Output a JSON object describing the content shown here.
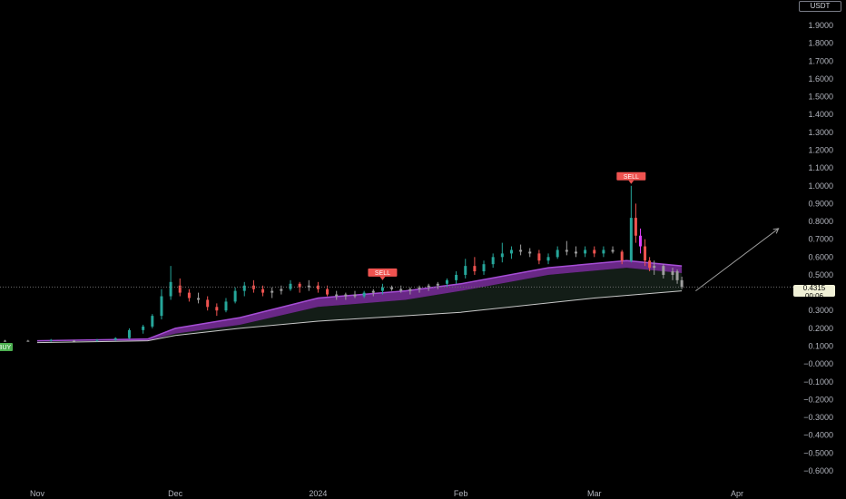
{
  "currency": "USDT",
  "last_price": {
    "value": "0.4315",
    "countdown": "00:06"
  },
  "colors": {
    "bull": "#26a69a",
    "bear": "#ef5350",
    "neutral": "#9e9e9e",
    "band": "#7b2f9e",
    "band_fill": "#15201a",
    "baseline": "#c8c8c8"
  },
  "chart_data": {
    "type": "candlestick",
    "y_axis": {
      "ticks": [
        "1.9000",
        "1.8000",
        "1.7000",
        "1.6000",
        "1.5000",
        "1.4000",
        "1.3000",
        "1.2000",
        "1.1000",
        "1.0000",
        "0.9000",
        "0.8000",
        "0.7000",
        "0.6000",
        "0.5000",
        "0.4000",
        "0.3000",
        "0.2000",
        "0.1000",
        "−0.0000",
        "−0.1000",
        "−0.2000",
        "−0.3000",
        "−0.4000",
        "−0.5000",
        "−0.6000"
      ],
      "ylim": [
        -0.6,
        1.9
      ]
    },
    "x_axis": {
      "ticks": [
        "Nov",
        "Dec",
        "2024",
        "Feb",
        "Mar",
        "Apr"
      ],
      "dates": [
        "2023-11-01",
        "2023-12-01",
        "2024-01-01",
        "2024-02-01",
        "2024-03-01",
        "2024-04-01"
      ]
    },
    "signals": [
      {
        "label": "SELL",
        "date": "2024-01-15",
        "price": 0.46
      },
      {
        "label": "SELL",
        "date": "2024-03-09",
        "price": 1.0
      },
      {
        "label": "BUY",
        "date": "2023-10-20",
        "price": 0.13
      }
    ],
    "band": {
      "upper": [
        [
          "2023-11-01",
          0.13
        ],
        [
          "2023-11-25",
          0.14
        ],
        [
          "2023-12-01",
          0.2
        ],
        [
          "2023-12-15",
          0.26
        ],
        [
          "2024-01-01",
          0.37
        ],
        [
          "2024-01-20",
          0.41
        ],
        [
          "2024-02-01",
          0.45
        ],
        [
          "2024-02-20",
          0.54
        ],
        [
          "2024-03-08",
          0.58
        ],
        [
          "2024-03-20",
          0.55
        ]
      ],
      "lower": [
        [
          "2023-11-01",
          0.13
        ],
        [
          "2023-11-25",
          0.13
        ],
        [
          "2023-12-01",
          0.17
        ],
        [
          "2023-12-15",
          0.22
        ],
        [
          "2024-01-01",
          0.32
        ],
        [
          "2024-01-20",
          0.36
        ],
        [
          "2024-02-01",
          0.41
        ],
        [
          "2024-02-20",
          0.5
        ],
        [
          "2024-03-08",
          0.54
        ],
        [
          "2024-03-20",
          0.51
        ]
      ]
    },
    "baseline": [
      [
        "2023-11-01",
        0.12
      ],
      [
        "2023-11-25",
        0.13
      ],
      [
        "2023-12-01",
        0.16
      ],
      [
        "2023-12-15",
        0.2
      ],
      [
        "2024-01-01",
        0.24
      ],
      [
        "2024-02-01",
        0.29
      ],
      [
        "2024-03-01",
        0.37
      ],
      [
        "2024-03-20",
        0.41
      ]
    ],
    "projection": [
      [
        "2024-03-23",
        0.41
      ],
      [
        "2024-04-10",
        0.76
      ]
    ],
    "candles": [
      [
        "2023-10-20",
        0.13,
        0.135,
        0.125,
        0.13
      ],
      [
        "2023-10-25",
        0.13,
        0.135,
        0.125,
        0.13
      ],
      [
        "2023-10-30",
        0.13,
        0.135,
        0.125,
        0.13
      ],
      [
        "2023-11-04",
        0.13,
        0.14,
        0.125,
        0.135
      ],
      [
        "2023-11-09",
        0.13,
        0.135,
        0.125,
        0.13
      ],
      [
        "2023-11-14",
        0.13,
        0.14,
        0.125,
        0.135
      ],
      [
        "2023-11-18",
        0.135,
        0.15,
        0.13,
        0.145
      ],
      [
        "2023-11-21",
        0.145,
        0.2,
        0.14,
        0.19
      ],
      [
        "2023-11-24",
        0.19,
        0.22,
        0.17,
        0.21
      ],
      [
        "2023-11-26",
        0.21,
        0.28,
        0.2,
        0.27
      ],
      [
        "2023-11-28",
        0.27,
        0.42,
        0.25,
        0.38
      ],
      [
        "2023-11-30",
        0.38,
        0.55,
        0.36,
        0.46
      ],
      [
        "2023-12-02",
        0.44,
        0.48,
        0.38,
        0.4
      ],
      [
        "2023-12-04",
        0.4,
        0.42,
        0.35,
        0.37
      ],
      [
        "2023-12-06",
        0.37,
        0.4,
        0.34,
        0.36
      ],
      [
        "2023-12-08",
        0.36,
        0.38,
        0.3,
        0.32
      ],
      [
        "2023-12-10",
        0.32,
        0.34,
        0.27,
        0.3
      ],
      [
        "2023-12-12",
        0.3,
        0.37,
        0.29,
        0.35
      ],
      [
        "2023-12-14",
        0.35,
        0.43,
        0.34,
        0.41
      ],
      [
        "2023-12-16",
        0.41,
        0.46,
        0.38,
        0.44
      ],
      [
        "2023-12-18",
        0.44,
        0.47,
        0.4,
        0.42
      ],
      [
        "2023-12-20",
        0.42,
        0.44,
        0.38,
        0.4
      ],
      [
        "2023-12-22",
        0.4,
        0.43,
        0.37,
        0.41
      ],
      [
        "2023-12-24",
        0.41,
        0.44,
        0.39,
        0.42
      ],
      [
        "2023-12-26",
        0.42,
        0.47,
        0.41,
        0.45
      ],
      [
        "2023-12-28",
        0.45,
        0.46,
        0.4,
        0.43
      ],
      [
        "2023-12-30",
        0.43,
        0.47,
        0.41,
        0.44
      ],
      [
        "2024-01-01",
        0.44,
        0.46,
        0.4,
        0.42
      ],
      [
        "2024-01-03",
        0.42,
        0.44,
        0.38,
        0.39
      ],
      [
        "2024-01-05",
        0.39,
        0.41,
        0.36,
        0.38
      ],
      [
        "2024-01-07",
        0.38,
        0.4,
        0.36,
        0.39
      ],
      [
        "2024-01-09",
        0.39,
        0.41,
        0.37,
        0.38
      ],
      [
        "2024-01-11",
        0.38,
        0.41,
        0.37,
        0.4
      ],
      [
        "2024-01-13",
        0.4,
        0.42,
        0.38,
        0.41
      ],
      [
        "2024-01-15",
        0.41,
        0.45,
        0.39,
        0.43
      ],
      [
        "2024-01-17",
        0.43,
        0.44,
        0.41,
        0.42
      ],
      [
        "2024-01-19",
        0.42,
        0.44,
        0.4,
        0.41
      ],
      [
        "2024-01-21",
        0.41,
        0.43,
        0.39,
        0.42
      ],
      [
        "2024-01-23",
        0.42,
        0.44,
        0.4,
        0.43
      ],
      [
        "2024-01-25",
        0.43,
        0.45,
        0.41,
        0.44
      ],
      [
        "2024-01-27",
        0.44,
        0.46,
        0.42,
        0.45
      ],
      [
        "2024-01-29",
        0.45,
        0.48,
        0.43,
        0.47
      ],
      [
        "2024-01-31",
        0.47,
        0.52,
        0.45,
        0.5
      ],
      [
        "2024-02-02",
        0.5,
        0.59,
        0.48,
        0.55
      ],
      [
        "2024-02-04",
        0.55,
        0.6,
        0.5,
        0.52
      ],
      [
        "2024-02-06",
        0.52,
        0.58,
        0.5,
        0.56
      ],
      [
        "2024-02-08",
        0.56,
        0.62,
        0.54,
        0.6
      ],
      [
        "2024-02-10",
        0.6,
        0.68,
        0.57,
        0.62
      ],
      [
        "2024-02-12",
        0.62,
        0.66,
        0.59,
        0.64
      ],
      [
        "2024-02-14",
        0.64,
        0.67,
        0.61,
        0.63
      ],
      [
        "2024-02-16",
        0.63,
        0.65,
        0.6,
        0.62
      ],
      [
        "2024-02-18",
        0.62,
        0.64,
        0.56,
        0.58
      ],
      [
        "2024-02-20",
        0.58,
        0.62,
        0.56,
        0.6
      ],
      [
        "2024-02-22",
        0.6,
        0.66,
        0.59,
        0.64
      ],
      [
        "2024-02-24",
        0.64,
        0.69,
        0.61,
        0.63
      ],
      [
        "2024-02-26",
        0.63,
        0.66,
        0.6,
        0.62
      ],
      [
        "2024-02-28",
        0.62,
        0.66,
        0.6,
        0.64
      ],
      [
        "2024-03-01",
        0.64,
        0.66,
        0.6,
        0.62
      ],
      [
        "2024-03-03",
        0.62,
        0.66,
        0.6,
        0.64
      ],
      [
        "2024-03-05",
        0.64,
        0.66,
        0.62,
        0.63
      ],
      [
        "2024-03-07",
        0.63,
        0.64,
        0.56,
        0.58
      ],
      [
        "2024-03-09",
        0.58,
        1.0,
        0.57,
        0.82
      ],
      [
        "2024-03-10",
        0.82,
        0.9,
        0.68,
        0.72
      ],
      [
        "2024-03-11",
        0.72,
        0.76,
        0.62,
        0.66
      ],
      [
        "2024-03-12",
        0.66,
        0.7,
        0.55,
        0.58
      ],
      [
        "2024-03-13",
        0.58,
        0.6,
        0.52,
        0.54
      ],
      [
        "2024-03-14",
        0.54,
        0.58,
        0.5,
        0.55
      ],
      [
        "2024-03-16",
        0.55,
        0.56,
        0.48,
        0.5
      ],
      [
        "2024-03-18",
        0.5,
        0.54,
        0.47,
        0.52
      ],
      [
        "2024-03-19",
        0.52,
        0.53,
        0.45,
        0.47
      ],
      [
        "2024-03-20",
        0.47,
        0.49,
        0.42,
        0.4315
      ]
    ]
  }
}
